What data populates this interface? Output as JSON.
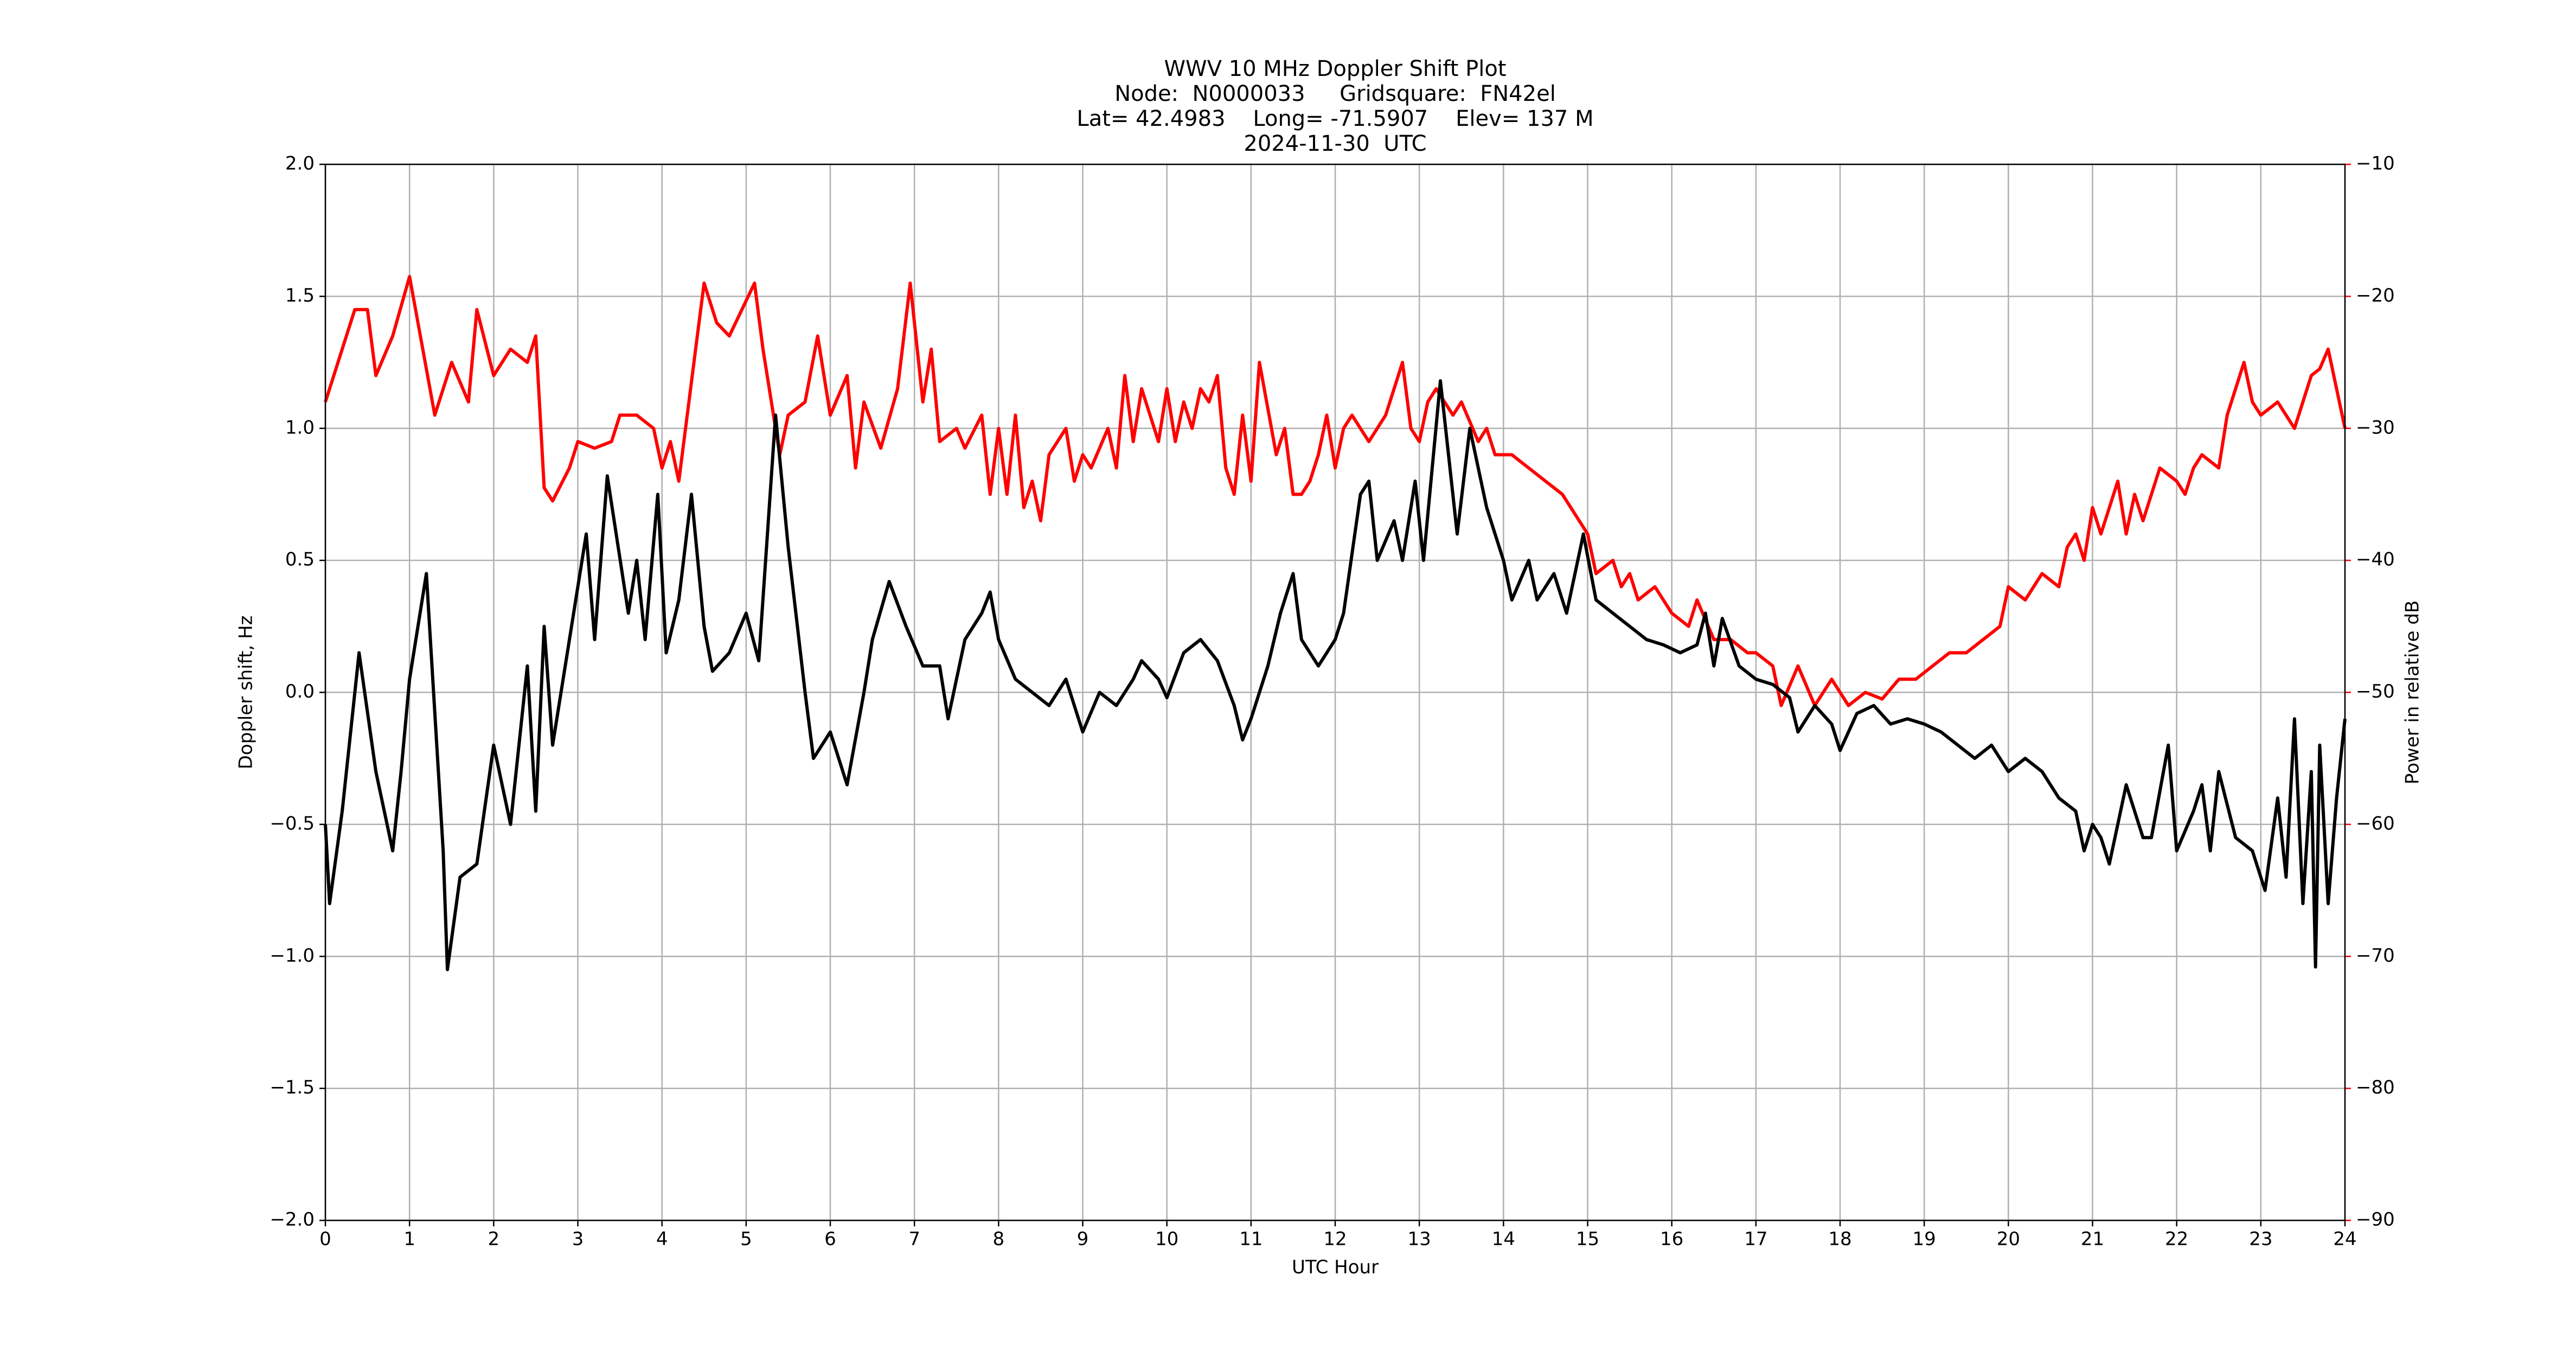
{
  "chart_data": {
    "type": "line",
    "title": [
      "WWV 10 MHz Doppler Shift Plot",
      "Node:  N0000033     Gridsquare:  FN42el",
      "Lat= 42.4983    Long= -71.5907    Elev= 137 M",
      "2024-11-30  UTC"
    ],
    "xlabel": "UTC Hour",
    "ylabel": "Doppler shift, Hz",
    "y2label": "Power in relative dB",
    "xlim": [
      0,
      24
    ],
    "ylim": [
      -2,
      2
    ],
    "y2lim": [
      -90,
      -10
    ],
    "xticks": [
      0,
      1,
      2,
      3,
      4,
      5,
      6,
      7,
      8,
      9,
      10,
      11,
      12,
      13,
      14,
      15,
      16,
      17,
      18,
      19,
      20,
      21,
      22,
      23,
      24
    ],
    "yticks": [
      {
        "value": -2,
        "label": "−2.0"
      },
      {
        "value": -1.5,
        "label": "−1.5"
      },
      {
        "value": -1,
        "label": "−1.0"
      },
      {
        "value": -0.5,
        "label": "−0.5"
      },
      {
        "value": 0,
        "label": "0.0"
      },
      {
        "value": 0.5,
        "label": "0.5"
      },
      {
        "value": 1,
        "label": "1.0"
      },
      {
        "value": 1.5,
        "label": "1.5"
      },
      {
        "value": 2,
        "label": "2.0"
      }
    ],
    "y2ticks": [
      {
        "value": -90,
        "label": "−90"
      },
      {
        "value": -80,
        "label": "−80"
      },
      {
        "value": -70,
        "label": "−70"
      },
      {
        "value": -60,
        "label": "−60"
      },
      {
        "value": -50,
        "label": "−50"
      },
      {
        "value": -40,
        "label": "−40"
      },
      {
        "value": -30,
        "label": "−30"
      },
      {
        "value": -20,
        "label": "−20"
      },
      {
        "value": -10,
        "label": "−10"
      }
    ],
    "grid": true,
    "y2color": "#ff0000",
    "series": [
      {
        "color": "#ff0000",
        "axis": "y2",
        "x": [
          0,
          0.2,
          0.35,
          0.5,
          0.6,
          0.8,
          1.0,
          1.1,
          1.3,
          1.5,
          1.7,
          1.8,
          2.0,
          2.2,
          2.4,
          2.5,
          2.6,
          2.7,
          2.9,
          3.0,
          3.2,
          3.4,
          3.5,
          3.7,
          3.9,
          4.0,
          4.1,
          4.2,
          4.4,
          4.5,
          4.65,
          4.8,
          4.95,
          5.1,
          5.2,
          5.4,
          5.5,
          5.7,
          5.85,
          6.0,
          6.2,
          6.3,
          6.4,
          6.6,
          6.8,
          6.95,
          7.1,
          7.2,
          7.3,
          7.5,
          7.6,
          7.8,
          7.9,
          8.0,
          8.1,
          8.2,
          8.3,
          8.4,
          8.5,
          8.6,
          8.8,
          8.9,
          9.0,
          9.1,
          9.3,
          9.4,
          9.5,
          9.6,
          9.7,
          9.9,
          10.0,
          10.1,
          10.2,
          10.3,
          10.4,
          10.5,
          10.6,
          10.7,
          10.8,
          10.9,
          11.0,
          11.1,
          11.3,
          11.4,
          11.5,
          11.6,
          11.7,
          11.8,
          11.9,
          12.0,
          12.1,
          12.2,
          12.4,
          12.6,
          12.8,
          12.9,
          13.0,
          13.1,
          13.2,
          13.4,
          13.5,
          13.7,
          13.8,
          13.9,
          14.1,
          14.3,
          14.5,
          14.7,
          14.9,
          15.0,
          15.1,
          15.3,
          15.4,
          15.5,
          15.6,
          15.8,
          16.0,
          16.2,
          16.3,
          16.5,
          16.7,
          16.9,
          17.0,
          17.2,
          17.3,
          17.5,
          17.7,
          17.9,
          18.1,
          18.3,
          18.5,
          18.7,
          18.9,
          19.1,
          19.3,
          19.5,
          19.7,
          19.9,
          20.0,
          20.2,
          20.4,
          20.6,
          20.7,
          20.8,
          20.9,
          21.0,
          21.1,
          21.3,
          21.4,
          21.5,
          21.6,
          21.8,
          22.0,
          22.1,
          22.2,
          22.3,
          22.5,
          22.6,
          22.8,
          22.9,
          23.0,
          23.2,
          23.4,
          23.6,
          23.7,
          23.8,
          24.0
        ],
        "values": [
          -28,
          -24,
          -21,
          -21,
          -26,
          -23,
          -18.5,
          -22,
          -29,
          -25,
          -28,
          -21,
          -26,
          -24,
          -25,
          -23,
          -34.5,
          -35.5,
          -33,
          -31,
          -31.5,
          -31,
          -29,
          -29,
          -30,
          -33,
          -31,
          -34,
          -24,
          -19,
          -22,
          -23,
          -21,
          -19,
          -24,
          -32,
          -29,
          -28,
          -23,
          -29,
          -26,
          -33,
          -28,
          -31.5,
          -27,
          -19,
          -28,
          -24,
          -31,
          -30,
          -31.5,
          -29,
          -35,
          -30,
          -35,
          -29,
          -36,
          -34,
          -37,
          -32,
          -30,
          -34,
          -32,
          -33,
          -30,
          -33,
          -26,
          -31,
          -27,
          -31,
          -27,
          -31,
          -28,
          -30,
          -27,
          -28,
          -26,
          -33,
          -35,
          -29,
          -34,
          -25,
          -32,
          -30,
          -35,
          -35,
          -34,
          -32,
          -29,
          -33,
          -30,
          -29,
          -31,
          -29,
          -25,
          -30,
          -31,
          -28,
          -27,
          -29,
          -28,
          -31,
          -30,
          -32,
          -32,
          -33,
          -34,
          -35,
          -37,
          -38,
          -41,
          -40,
          -42,
          -41,
          -43,
          -42,
          -44,
          -45,
          -43,
          -46,
          -46,
          -47,
          -47,
          -48,
          -51,
          -48,
          -51,
          -49,
          -51,
          -50,
          -50.5,
          -49,
          -49,
          -48,
          -47,
          -47,
          -46,
          -45,
          -42,
          -43,
          -41,
          -42,
          -39,
          -38,
          -40,
          -36,
          -38,
          -34,
          -38,
          -35,
          -37,
          -33,
          -34,
          -35,
          -33,
          -32,
          -33,
          -29,
          -25,
          -28,
          -29,
          -28,
          -30,
          -26,
          -25.5,
          -24,
          -30
        ]
      },
      {
        "color": "#000000",
        "x": [
          0,
          0.05,
          0.2,
          0.4,
          0.6,
          0.8,
          0.9,
          1.0,
          1.2,
          1.4,
          1.45,
          1.6,
          1.8,
          2.0,
          2.2,
          2.4,
          2.5,
          2.6,
          2.7,
          2.8,
          3.0,
          3.1,
          3.2,
          3.35,
          3.6,
          3.7,
          3.8,
          3.95,
          4.05,
          4.2,
          4.35,
          4.5,
          4.6,
          4.8,
          5.0,
          5.15,
          5.35,
          5.5,
          5.7,
          5.8,
          6.0,
          6.2,
          6.4,
          6.5,
          6.7,
          6.9,
          7.1,
          7.3,
          7.4,
          7.6,
          7.8,
          7.9,
          8.0,
          8.2,
          8.4,
          8.6,
          8.8,
          9.0,
          9.2,
          9.4,
          9.6,
          9.7,
          9.9,
          10.0,
          10.2,
          10.4,
          10.6,
          10.8,
          10.9,
          11.0,
          11.2,
          11.35,
          11.5,
          11.6,
          11.8,
          12.0,
          12.1,
          12.3,
          12.4,
          12.5,
          12.7,
          12.8,
          12.95,
          13.05,
          13.25,
          13.45,
          13.6,
          13.8,
          14.0,
          14.1,
          14.3,
          14.4,
          14.6,
          14.75,
          14.95,
          15.1,
          15.3,
          15.5,
          15.7,
          15.9,
          16.1,
          16.3,
          16.4,
          16.5,
          16.6,
          16.8,
          17.0,
          17.2,
          17.4,
          17.5,
          17.7,
          17.9,
          18.0,
          18.2,
          18.4,
          18.6,
          18.8,
          19.0,
          19.2,
          19.4,
          19.6,
          19.8,
          20.0,
          20.2,
          20.4,
          20.6,
          20.8,
          20.9,
          21.0,
          21.1,
          21.2,
          21.4,
          21.6,
          21.7,
          21.9,
          22.0,
          22.2,
          22.3,
          22.4,
          22.5,
          22.7,
          22.9,
          23.05,
          23.2,
          23.3,
          23.4,
          23.5,
          23.6,
          23.65,
          23.7,
          23.8,
          23.9,
          24.0
        ],
        "values": [
          -0.5,
          -0.8,
          -0.45,
          0.15,
          -0.3,
          -0.6,
          -0.3,
          0.05,
          0.45,
          -0.6,
          -1.05,
          -0.7,
          -0.65,
          -0.2,
          -0.5,
          0.1,
          -0.45,
          0.25,
          -0.2,
          0.0,
          0.4,
          0.6,
          0.2,
          0.82,
          0.3,
          0.5,
          0.2,
          0.75,
          0.15,
          0.35,
          0.75,
          0.25,
          0.08,
          0.15,
          0.3,
          0.12,
          1.05,
          0.55,
          0.0,
          -0.25,
          -0.15,
          -0.35,
          0.0,
          0.2,
          0.42,
          0.25,
          0.1,
          0.1,
          -0.1,
          0.2,
          0.3,
          0.38,
          0.2,
          0.05,
          0.0,
          -0.05,
          0.05,
          -0.15,
          0.0,
          -0.05,
          0.05,
          0.12,
          0.05,
          -0.02,
          0.15,
          0.2,
          0.12,
          -0.05,
          -0.18,
          -0.1,
          0.1,
          0.3,
          0.45,
          0.2,
          0.1,
          0.2,
          0.3,
          0.75,
          0.8,
          0.5,
          0.65,
          0.5,
          0.8,
          0.5,
          1.18,
          0.6,
          1.0,
          0.7,
          0.5,
          0.35,
          0.5,
          0.35,
          0.45,
          0.3,
          0.6,
          0.35,
          0.3,
          0.25,
          0.2,
          0.18,
          0.15,
          0.18,
          0.3,
          0.1,
          0.28,
          0.1,
          0.05,
          0.03,
          -0.02,
          -0.15,
          -0.05,
          -0.12,
          -0.22,
          -0.08,
          -0.05,
          -0.12,
          -0.1,
          -0.12,
          -0.15,
          -0.2,
          -0.25,
          -0.2,
          -0.3,
          -0.25,
          -0.3,
          -0.4,
          -0.45,
          -0.6,
          -0.5,
          -0.55,
          -0.65,
          -0.35,
          -0.55,
          -0.55,
          -0.2,
          -0.6,
          -0.45,
          -0.35,
          -0.6,
          -0.3,
          -0.55,
          -0.6,
          -0.75,
          -0.4,
          -0.7,
          -0.1,
          -0.8,
          -0.3,
          -1.04,
          -0.2,
          -0.8,
          -0.4,
          -0.1
        ]
      }
    ]
  }
}
